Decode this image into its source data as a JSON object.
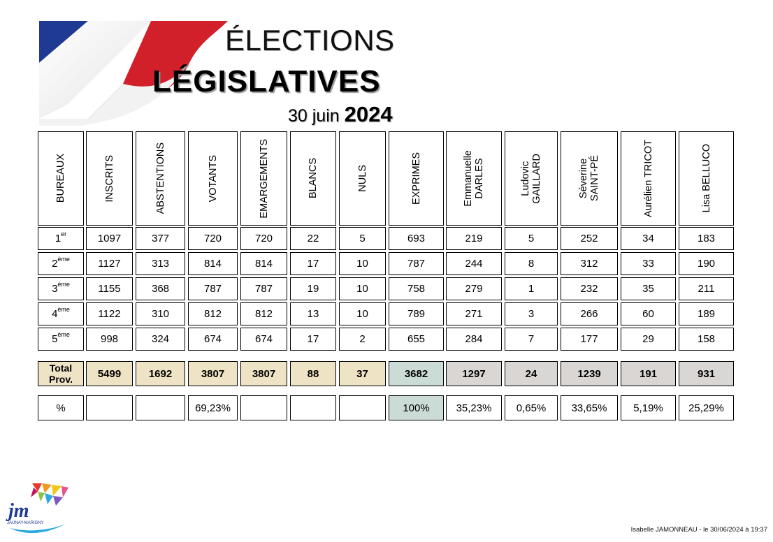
{
  "header": {
    "title_line1": "ÉLECTIONS",
    "title_line2": "LÉGISLATIVES",
    "date_prefix": "30 juin",
    "date_year": "2024"
  },
  "colors": {
    "flag_blue": "#1f3a93",
    "flag_red": "#d1202a",
    "beige": "#efe3c5",
    "teal": "#cbdcd6",
    "gray": "#d9d6d4"
  },
  "table": {
    "headers": [
      "BUREAUX",
      "INSCRITS",
      "ABSTENTIONS",
      "VOTANTS",
      "EMARGEMENTS",
      "BLANCS",
      "NULS",
      "EXPRIMES",
      "Emmanuelle\nDARLES",
      "Ludovic\nGAILLARD",
      "Séverine\nSAINT-PÉ",
      "Aurélien TRICOT",
      "Lisa BELLUCO"
    ],
    "rows": [
      {
        "num": "1",
        "sup": "er",
        "values": [
          "1097",
          "377",
          "720",
          "720",
          "22",
          "5",
          "693",
          "219",
          "5",
          "252",
          "34",
          "183"
        ]
      },
      {
        "num": "2",
        "sup": "ème",
        "values": [
          "1127",
          "313",
          "814",
          "814",
          "17",
          "10",
          "787",
          "244",
          "8",
          "312",
          "33",
          "190"
        ]
      },
      {
        "num": "3",
        "sup": "ème",
        "values": [
          "1155",
          "368",
          "787",
          "787",
          "19",
          "10",
          "758",
          "279",
          "1",
          "232",
          "35",
          "211"
        ]
      },
      {
        "num": "4",
        "sup": "ème",
        "values": [
          "1122",
          "310",
          "812",
          "812",
          "13",
          "10",
          "789",
          "271",
          "3",
          "266",
          "60",
          "189"
        ]
      },
      {
        "num": "5",
        "sup": "ème",
        "values": [
          "998",
          "324",
          "674",
          "674",
          "17",
          "2",
          "655",
          "284",
          "7",
          "177",
          "29",
          "158"
        ]
      }
    ],
    "total": {
      "label_line1": "Total",
      "label_line2": "Prov.",
      "values": [
        "5499",
        "1692",
        "3807",
        "3807",
        "88",
        "37",
        "3682",
        "1297",
        "24",
        "1239",
        "191",
        "931"
      ]
    },
    "percent": {
      "label": "%",
      "values": [
        "",
        "",
        "69,23%",
        "",
        "",
        "",
        "100%",
        "35,23%",
        "0,65%",
        "33,65%",
        "5,19%",
        "25,29%"
      ]
    }
  },
  "logo": {
    "text": "jm",
    "caption": "JAUNAY-MARIGNY"
  },
  "footer": {
    "credit": "Isabelle JAMONNEAU - le 30/06/2024 à 19:37"
  }
}
